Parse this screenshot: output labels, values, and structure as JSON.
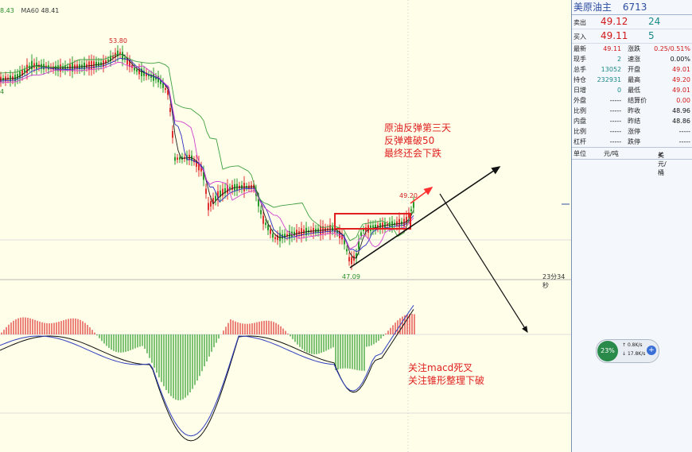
{
  "chart_header": {
    "ma_value_left": "8.43",
    "ma60_label": "MA60",
    "ma60_value": "48.41"
  },
  "price_labels": {
    "peak": "53.80",
    "recent_high": "49.20",
    "trough": "47.09",
    "left_axis_tick": "4"
  },
  "countdown": "23分34秒",
  "annotation_top": [
    "原油反弹第三天",
    "反弹难破50",
    "最终还会下跌"
  ],
  "annotation_bottom": [
    "关注macd死叉",
    "关注锥形整理下破"
  ],
  "colors": {
    "up": "#e03030",
    "down": "#2a9a2a",
    "ma_short": "#202020",
    "ma_blue": "#3030c0",
    "ma_pink": "#d040d0",
    "ma_green": "#40a040",
    "arrow_red": "#ff3030"
  },
  "quote": {
    "name": "美原油主",
    "code": "6713",
    "sell_label": "卖出",
    "sell_price": "49.12",
    "sell_qty": "24",
    "buy_label": "买入",
    "buy_price": "49.11",
    "buy_qty": "5",
    "rows": [
      {
        "k": "最新",
        "v": "49.11",
        "vc": "red",
        "k2": "涨跌",
        "v2": "0.25/0.51%",
        "v2c": "red"
      },
      {
        "k": "现手",
        "v": "2",
        "vc": "teal",
        "k2": "速涨",
        "v2": "0.00%",
        "v2c": "blk"
      },
      {
        "k": "总手",
        "v": "13052",
        "vc": "teal",
        "k2": "开盘",
        "v2": "49.01",
        "v2c": "red"
      },
      {
        "k": "持仓",
        "v": "232931",
        "vc": "teal",
        "k2": "最高",
        "v2": "49.20",
        "v2c": "red"
      },
      {
        "k": "日增",
        "v": "0",
        "vc": "teal",
        "k2": "最低",
        "v2": "49.01",
        "v2c": "red"
      },
      {
        "k": "外盘",
        "v": "-----",
        "vc": "blk",
        "k2": "结算价",
        "v2": "0.00",
        "v2c": "red"
      },
      {
        "k": "比例",
        "v": "-----",
        "vc": "blk",
        "k2": "昨收",
        "v2": "48.96",
        "v2c": "blk"
      },
      {
        "k": "内盘",
        "v": "-----",
        "vc": "blk",
        "k2": "昨结",
        "v2": "48.86",
        "v2c": "blk"
      },
      {
        "k": "比例",
        "v": "-----",
        "vc": "blk",
        "k2": "涨停",
        "v2": "-----",
        "v2c": "blk"
      },
      {
        "k": "杠杆",
        "v": "-----",
        "vc": "blk",
        "k2": "跌停",
        "v2": "-----",
        "v2c": "blk"
      }
    ],
    "unit_label": "单位",
    "unit_value": "元/吨",
    "currency": "美元/桶"
  },
  "speed_gauge": {
    "percent": "23%",
    "upload": "0.8K/s",
    "download": "17.8K/s"
  }
}
